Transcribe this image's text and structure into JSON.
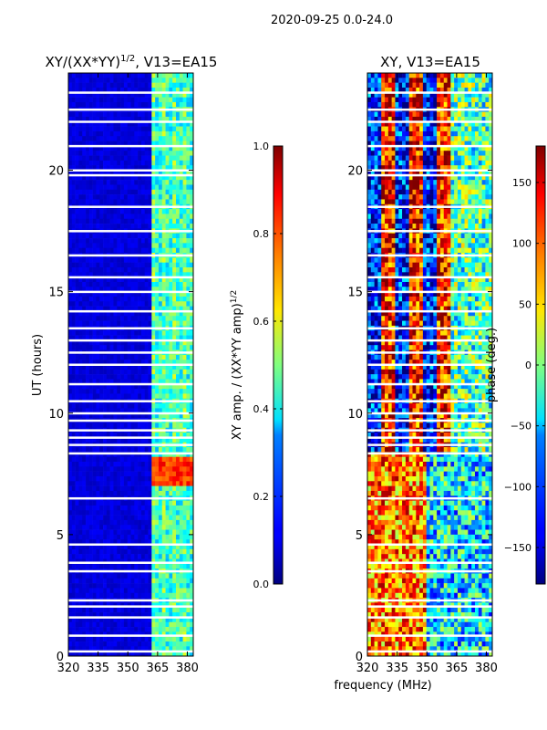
{
  "suptitle": "2020-09-25 0.0-24.0",
  "shared_xlabel": "frequency (MHz)",
  "chart_data": [
    {
      "type": "heatmap",
      "title_main": "XY/(XX*YY)",
      "title_sup": "1/2",
      "title_tail": ", V13=EA15",
      "ylabel": "UT (hours)",
      "x_ticks": [
        320,
        335,
        350,
        365,
        380
      ],
      "xlim": [
        320,
        383
      ],
      "y_ticks": [
        0,
        5,
        10,
        15,
        20
      ],
      "ylim": [
        0,
        24
      ],
      "colorbar": {
        "label_main": "XY amp. / (XX*YY amp)",
        "label_sup": "1/2",
        "ticks": [
          "0.0",
          "0.2",
          "0.4",
          "0.6",
          "0.8",
          "1.0"
        ],
        "tick_values": [
          0.0,
          0.2,
          0.4,
          0.6,
          0.8,
          1.0
        ],
        "range": [
          0.0,
          1.0
        ],
        "colormap": "jet"
      },
      "flag_gaps_ut": [
        0.2,
        0.85,
        1.6,
        2.05,
        2.3,
        3.5,
        3.85,
        4.6,
        6.5,
        8.35,
        8.7,
        9.0,
        9.3,
        9.7,
        10.0,
        10.5,
        11.2,
        12.0,
        12.5,
        13.0,
        13.5,
        14.2,
        15.0,
        15.6,
        16.5,
        17.5,
        18.5,
        19.8,
        20.0,
        21.0,
        22.0,
        22.5,
        23.2
      ],
      "features": [
        {
          "freq_range_mhz": [
            320,
            362
          ],
          "ut_range": [
            0,
            24
          ],
          "level": 0.05
        },
        {
          "freq_range_mhz": [
            363,
            381
          ],
          "ut_range": [
            0,
            24
          ],
          "level": 0.4
        },
        {
          "freq_range_mhz": [
            363,
            381
          ],
          "ut_range": [
            7.0,
            8.3
          ],
          "level": 0.8
        }
      ]
    },
    {
      "type": "heatmap",
      "title_main": "XY, V13=EA15",
      "x_ticks": [
        320,
        335,
        350,
        365,
        380
      ],
      "xlim": [
        320,
        383
      ],
      "y_ticks": [
        0,
        5,
        10,
        15,
        20
      ],
      "ylim": [
        0,
        24
      ],
      "colorbar": {
        "label_main": "phase (deg.)",
        "ticks": [
          "150",
          "100",
          "50",
          "0",
          "−50",
          "−100",
          "−150"
        ],
        "tick_values": [
          150,
          100,
          50,
          0,
          -50,
          -100,
          -150
        ],
        "range": [
          -180,
          180
        ],
        "colormap": "jet"
      },
      "flag_gaps_ut": [
        0.2,
        0.85,
        1.6,
        2.05,
        2.3,
        3.5,
        3.85,
        4.6,
        6.5,
        8.35,
        8.7,
        9.0,
        9.3,
        9.7,
        10.0,
        10.5,
        11.2,
        12.0,
        12.5,
        13.0,
        13.5,
        14.2,
        15.0,
        15.6,
        16.5,
        17.5,
        18.5,
        19.8,
        20.0,
        21.0,
        22.0,
        22.5,
        23.2
      ]
    }
  ]
}
